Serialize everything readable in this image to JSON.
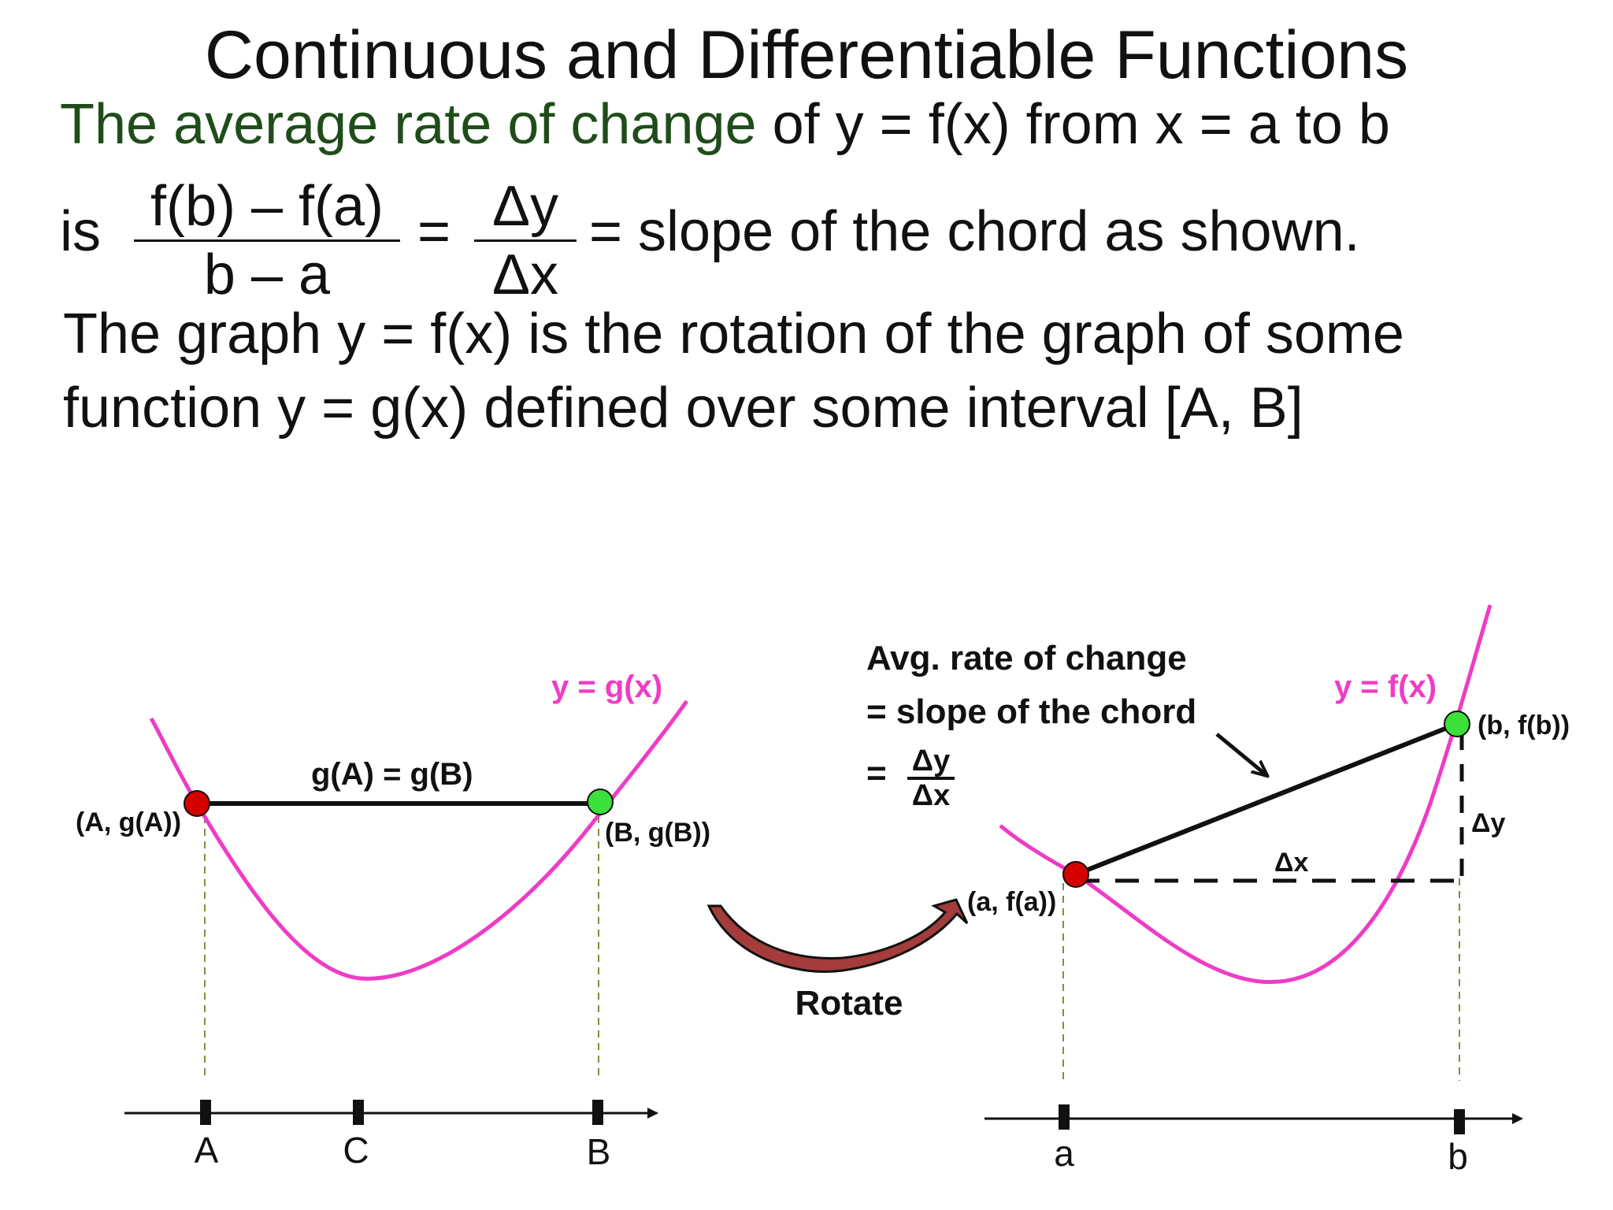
{
  "title": "Continuous and Differentiable Functions",
  "line1": {
    "highlight": "The average rate of change",
    "rest": " of y = f(x) from x = a to b"
  },
  "line2": {
    "is": "is",
    "frac1_num": "f(b) – f(a)",
    "frac1_den": "b – a",
    "eq": "=",
    "frac2_num": "Δy",
    "frac2_den": "Δx",
    "rest": "= slope of the chord as shown."
  },
  "line3": "The graph y = f(x) is the rotation of the graph of some",
  "line4": "function y = g(x) defined over some interval [A, B]",
  "left_diagram": {
    "curve_label": "y = g(x)",
    "chord_label": "g(A) = g(B)",
    "point_A_label": "(A, g(A))",
    "point_B_label": "(B, g(B))",
    "ticks": [
      "A",
      "C",
      "B"
    ]
  },
  "rotate_label": "Rotate",
  "right_diagram": {
    "annotation_line1": "Avg. rate of change",
    "annotation_line2": "= slope of the chord",
    "annotation_eq": "=",
    "annotation_num": "Δy",
    "annotation_den": "Δx",
    "curve_label": "y = f(x)",
    "point_a_label": "(a, f(a))",
    "point_b_label": "(b, f(b))",
    "dx_label": "Δx",
    "dy_label": "Δy",
    "ticks": [
      "a",
      "b"
    ]
  },
  "colors": {
    "curve": "#ee3cc6",
    "point_start": "#d40000",
    "point_end": "#3be03b",
    "highlight_text": "#1f4d1a",
    "dashed_guide": "#8a8a3a",
    "rotate_arrow": "#a43c3c"
  }
}
